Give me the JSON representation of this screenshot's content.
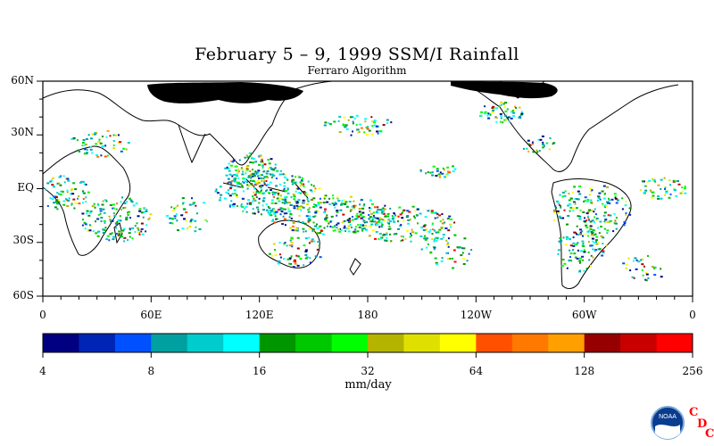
{
  "title": "February 5 – 9, 1999 SSM/I Rainfall",
  "subtitle": "Ferraro Algorithm",
  "lat_labels": [
    "60N",
    "30N",
    "EQ",
    "30S",
    "60S"
  ],
  "lon_labels": [
    "0",
    "60E",
    "120E",
    "180",
    "120W",
    "60W",
    "0"
  ],
  "colorbar": {
    "colors": [
      "#000080",
      "#0024b4",
      "#0050ff",
      "#00a0a0",
      "#00cccc",
      "#00ffff",
      "#009600",
      "#00c800",
      "#00ff00",
      "#b4b400",
      "#e0e000",
      "#ffff00",
      "#ff5000",
      "#ff7800",
      "#ffa000",
      "#960000",
      "#c80000",
      "#ff0000"
    ],
    "tick_labels": [
      "4",
      "8",
      "16",
      "32",
      "64",
      "128",
      "256"
    ]
  },
  "units": "mm/day",
  "logo": {
    "name": "NOAA",
    "letters": [
      "C",
      "D",
      "C"
    ]
  },
  "map_icon": "world-map-rainfall"
}
